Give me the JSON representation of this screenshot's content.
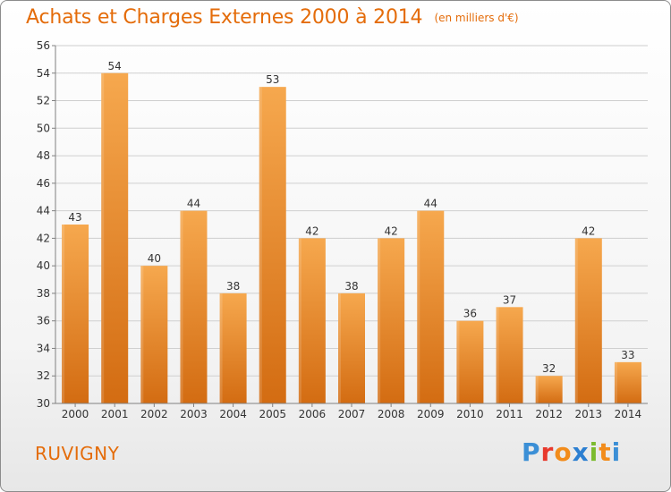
{
  "header": {
    "title": "Achats et Charges Externes 2000 à 2014",
    "unit": "(en milliers d'€)"
  },
  "footer": {
    "location": "RUVIGNY",
    "brand": "Proxiti"
  },
  "colors": {
    "accent": "#e46c0a",
    "bar_light": "#f6a84e",
    "bar_dark": "#d36c12",
    "grid": "#cfcfcf",
    "axis": "#808080",
    "logo_letters": [
      "#3b8fd6",
      "#e8392c",
      "#f28c1b",
      "#2c7fd1",
      "#7cbb2e",
      "#f28c1b",
      "#3b8fd6"
    ]
  },
  "chart_data": {
    "type": "bar",
    "title": "Achats et Charges Externes 2000 à 2014",
    "subtitle": "(en milliers d'€)",
    "categories": [
      "2000",
      "2001",
      "2002",
      "2003",
      "2004",
      "2005",
      "2006",
      "2007",
      "2008",
      "2009",
      "2010",
      "2011",
      "2012",
      "2013",
      "2014"
    ],
    "values": [
      43,
      54,
      40,
      44,
      38,
      53,
      42,
      38,
      42,
      44,
      36,
      37,
      32,
      42,
      33
    ],
    "ylim": [
      30,
      56
    ],
    "yticks": [
      30,
      32,
      34,
      36,
      38,
      40,
      42,
      44,
      46,
      48,
      50,
      52,
      54,
      56
    ],
    "grid": true,
    "xlabel": "",
    "ylabel": ""
  }
}
